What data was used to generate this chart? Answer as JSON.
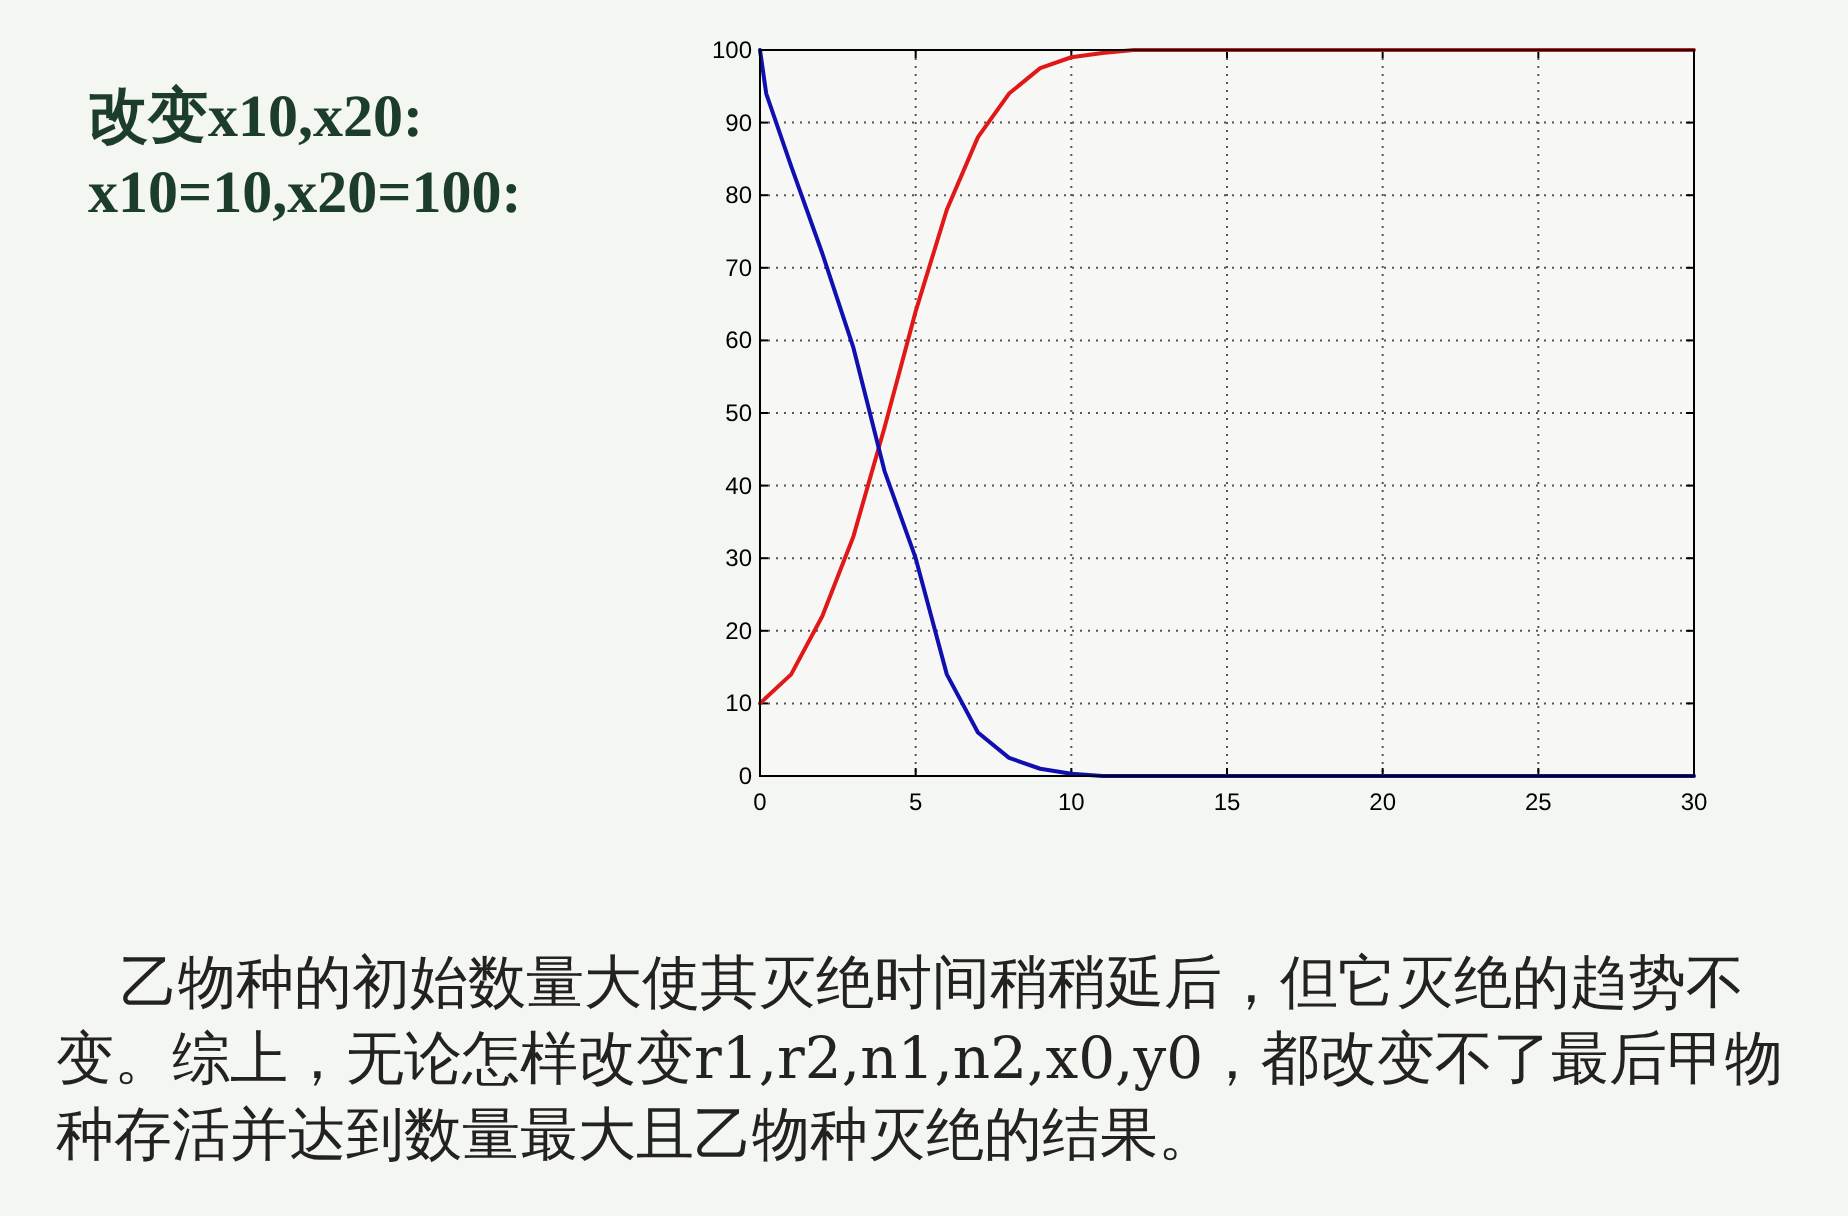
{
  "chart_data": {
    "type": "line",
    "title": "改变x10,x20:",
    "subtitle": "x10=10,x20=100:",
    "annotations": [
      "乙物种的初始数量大使其灭绝时间稍稍延后，但它灭绝的趋势不变。综上，无论怎样改变r1,r2,n1,n2,x0,y0，都改变不了最后甲物种存活并达到数量最大且乙物种灭绝的结果。"
    ],
    "series": [
      {
        "color": "#e01818",
        "x": [
          0,
          1,
          2,
          3,
          4,
          4.75,
          5,
          6,
          7,
          8,
          9,
          10,
          11,
          12,
          13,
          20,
          30
        ],
        "values": [
          10,
          14,
          22,
          33,
          48,
          60,
          64,
          78,
          88,
          94,
          97.5,
          99,
          99.6,
          100,
          100,
          100,
          100
        ]
      },
      {
        "color": "#1010b0",
        "x": [
          0,
          0.2,
          1,
          2,
          3,
          4,
          5,
          5.5,
          6,
          7,
          8,
          9,
          10,
          11,
          20,
          30
        ],
        "values": [
          100,
          94,
          84,
          72,
          59,
          42,
          30,
          22,
          14,
          6,
          2.5,
          1,
          0.3,
          0,
          0,
          0
        ]
      }
    ],
    "xlim": [
      0,
      30
    ],
    "ylim": [
      0,
      100
    ],
    "xticks": [
      0,
      5,
      10,
      15,
      20,
      25,
      30
    ],
    "yticks": [
      0,
      10,
      20,
      30,
      40,
      50,
      60,
      70,
      80,
      90,
      100
    ],
    "grid": true,
    "marker": "none",
    "line_style": "solid"
  }
}
